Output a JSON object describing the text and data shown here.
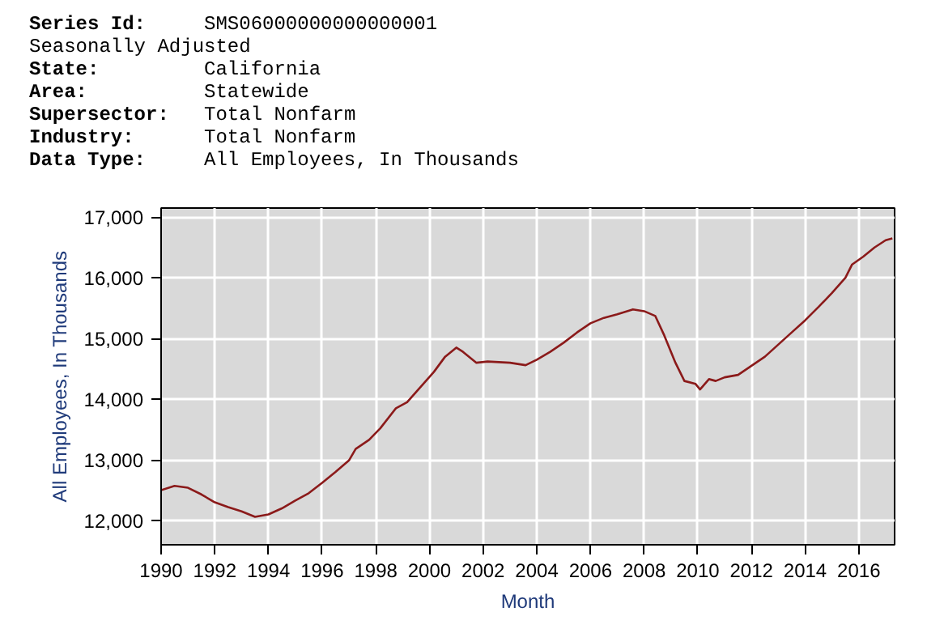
{
  "chart_data": {
    "type": "line",
    "annotations": [
      "Series Id:     SMS06000000000000001",
      "Seasonally Adjusted",
      "State:         California",
      "Area:          Statewide",
      "Supersector:   Total Nonfarm",
      "Industry:      Total Nonfarm",
      "Data Type:     All Employees, In Thousands"
    ],
    "xlabel": "Month",
    "ylabel": "All Employees, In Thousands",
    "x": [
      "1990-01",
      "1990-07",
      "1991-01",
      "1991-07",
      "1992-01",
      "1992-07",
      "1993-01",
      "1993-07",
      "1994-01",
      "1994-07",
      "1995-01",
      "1995-07",
      "1996-01",
      "1996-07",
      "1997-01",
      "1997-04",
      "1997-10",
      "1998-03",
      "1998-10",
      "1999-03",
      "1999-09",
      "2000-03",
      "2000-08",
      "2001-01",
      "2001-04",
      "2001-10",
      "2002-03",
      "2003-01",
      "2003-08",
      "2004-01",
      "2004-07",
      "2005-01",
      "2005-07",
      "2006-01",
      "2006-07",
      "2007-01",
      "2007-08",
      "2008-01",
      "2008-06",
      "2008-10",
      "2009-03",
      "2009-07",
      "2009-12",
      "2010-02",
      "2010-06",
      "2010-09",
      "2011-01",
      "2011-07",
      "2012-01",
      "2012-07",
      "2013-01",
      "2013-07",
      "2014-01",
      "2014-07",
      "2015-01",
      "2015-07",
      "2015-10",
      "2016-03",
      "2016-08",
      "2017-01",
      "2017-04"
    ],
    "series": [
      {
        "color": "#8b1a1a",
        "values": [
          12500,
          12570,
          12540,
          12430,
          12300,
          12220,
          12150,
          12060,
          12100,
          12200,
          12330,
          12450,
          12620,
          12800,
          12990,
          13180,
          13330,
          13520,
          13850,
          13950,
          14200,
          14450,
          14700,
          14850,
          14780,
          14600,
          14620,
          14600,
          14560,
          14650,
          14780,
          14930,
          15100,
          15250,
          15340,
          15400,
          15480,
          15450,
          15370,
          15050,
          14600,
          14300,
          14250,
          14160,
          14330,
          14300,
          14360,
          14400,
          14550,
          14700,
          14900,
          15100,
          15300,
          15520,
          15750,
          16000,
          16220,
          16350,
          16500,
          16620,
          16650
        ]
      }
    ],
    "xlim": [
      "1990-01",
      "2017-05"
    ],
    "ylim": [
      11600,
      17150
    ],
    "xticks": [
      "1990",
      "1992",
      "1994",
      "1996",
      "1998",
      "2000",
      "2002",
      "2004",
      "2006",
      "2008",
      "2010",
      "2012",
      "2014",
      "2016"
    ],
    "yticks": [
      {
        "value": 12000,
        "label": "12,000"
      },
      {
        "value": 13000,
        "label": "13,000"
      },
      {
        "value": 14000,
        "label": "14,000"
      },
      {
        "value": 15000,
        "label": "15,000"
      },
      {
        "value": 16000,
        "label": "16,000"
      },
      {
        "value": 17000,
        "label": "17,000"
      }
    ],
    "grid": true,
    "marker": "none",
    "line_style": "solid"
  }
}
